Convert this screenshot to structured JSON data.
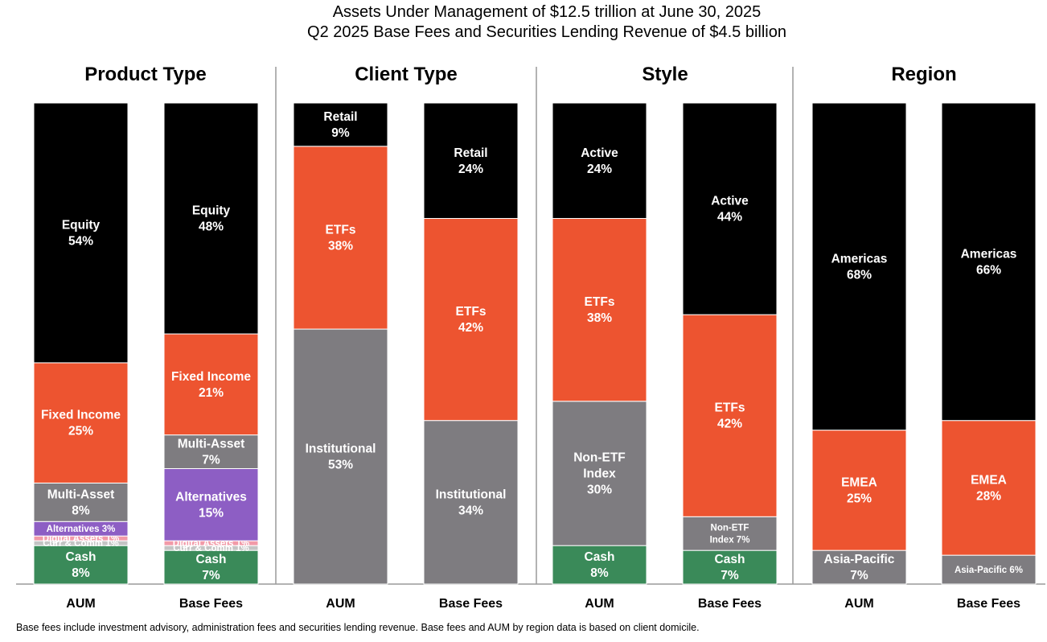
{
  "header": {
    "title_line1": "Assets Under Management of $12.5 trillion at June 30, 2025",
    "title_line2": "Q2 2025 Base Fees and Securities Lending Revenue of $4.5 billion"
  },
  "footnote": "Base fees include investment advisory, administration fees and securities lending revenue. Base fees and AUM by region data is based on client domicile.",
  "colors": {
    "black": "#000000",
    "orange": "#ed5430",
    "gray": "#7e7c80",
    "purple": "#8d5ec4",
    "pink": "#f29aa8",
    "lightgray": "#c4c4c4",
    "green": "#3a8a59"
  },
  "chart_data": [
    {
      "type": "bar",
      "stacked": "100%",
      "title": "Product Type",
      "bars": [
        {
          "label": "AUM",
          "segments": [
            {
              "name": "Cash",
              "display": "Cash",
              "value": 8,
              "label": "8%",
              "color": "green"
            },
            {
              "name": "Curr & Comm",
              "display": "Curr & Comm",
              "value": 1,
              "label": "1%",
              "color": "lightgray",
              "inline": true
            },
            {
              "name": "Digital Assets",
              "display": "Digital Assets",
              "value": 1,
              "label": "1%",
              "color": "pink",
              "inline": true
            },
            {
              "name": "Alternatives",
              "display": "Alternatives",
              "value": 3,
              "label": "3%",
              "color": "purple",
              "inline": true
            },
            {
              "name": "Multi-Asset",
              "display": "Multi-Asset",
              "value": 8,
              "label": "8%",
              "color": "gray"
            },
            {
              "name": "Fixed Income",
              "display": "Fixed Income",
              "value": 25,
              "label": "25%",
              "color": "orange"
            },
            {
              "name": "Equity",
              "display": "Equity",
              "value": 54,
              "label": "54%",
              "color": "black"
            }
          ]
        },
        {
          "label": "Base Fees",
          "segments": [
            {
              "name": "Cash",
              "display": "Cash",
              "value": 7,
              "label": "7%",
              "color": "green"
            },
            {
              "name": "Curr & Comm",
              "display": "Curr & Comm",
              "value": 1,
              "label": "1%",
              "color": "lightgray",
              "inline": true
            },
            {
              "name": "Digital Assets",
              "display": "Digital Assets",
              "value": 1,
              "label": "1%",
              "color": "pink",
              "inline": true
            },
            {
              "name": "Alternatives",
              "display": "Alternatives",
              "value": 15,
              "label": "15%",
              "color": "purple"
            },
            {
              "name": "Multi-Asset",
              "display": "Multi-Asset",
              "value": 7,
              "label": "7%",
              "color": "gray"
            },
            {
              "name": "Fixed Income",
              "display": "Fixed Income",
              "value": 21,
              "label": "21%",
              "color": "orange"
            },
            {
              "name": "Equity",
              "display": "Equity",
              "value": 48,
              "label": "48%",
              "color": "black"
            }
          ]
        }
      ]
    },
    {
      "type": "bar",
      "stacked": "100%",
      "title": "Client Type",
      "bars": [
        {
          "label": "AUM",
          "segments": [
            {
              "name": "Institutional",
              "display": "Institutional",
              "value": 53,
              "label": "53%",
              "color": "gray"
            },
            {
              "name": "ETFs",
              "display": "ETFs",
              "value": 38,
              "label": "38%",
              "color": "orange"
            },
            {
              "name": "Retail",
              "display": "Retail",
              "value": 9,
              "label": "9%",
              "color": "black"
            }
          ]
        },
        {
          "label": "Base Fees",
          "segments": [
            {
              "name": "Institutional",
              "display": "Institutional",
              "value": 34,
              "label": "34%",
              "color": "gray"
            },
            {
              "name": "ETFs",
              "display": "ETFs",
              "value": 42,
              "label": "42%",
              "color": "orange"
            },
            {
              "name": "Retail",
              "display": "Retail",
              "value": 24,
              "label": "24%",
              "color": "black"
            }
          ]
        }
      ]
    },
    {
      "type": "bar",
      "stacked": "100%",
      "title": "Style",
      "bars": [
        {
          "label": "AUM",
          "segments": [
            {
              "name": "Cash",
              "display": "Cash",
              "value": 8,
              "label": "8%",
              "color": "green"
            },
            {
              "name": "Non-ETF Index",
              "display": "Non-ETF\nIndex",
              "value": 30,
              "label": "30%",
              "color": "gray"
            },
            {
              "name": "ETFs",
              "display": "ETFs",
              "value": 38,
              "label": "38%",
              "color": "orange"
            },
            {
              "name": "Active",
              "display": "Active",
              "value": 24,
              "label": "24%",
              "color": "black"
            }
          ]
        },
        {
          "label": "Base Fees",
          "segments": [
            {
              "name": "Cash",
              "display": "Cash",
              "value": 7,
              "label": "7%",
              "color": "green"
            },
            {
              "name": "Non-ETF Index",
              "display": "Non-ETF\nIndex",
              "value": 7,
              "label": "7%",
              "color": "gray",
              "small": true
            },
            {
              "name": "ETFs",
              "display": "ETFs",
              "value": 42,
              "label": "42%",
              "color": "orange"
            },
            {
              "name": "Active",
              "display": "Active",
              "value": 44,
              "label": "44%",
              "color": "black"
            }
          ]
        }
      ]
    },
    {
      "type": "bar",
      "stacked": "100%",
      "title": "Region",
      "bars": [
        {
          "label": "AUM",
          "segments": [
            {
              "name": "Asia-Pacific",
              "display": "Asia-Pacific",
              "value": 7,
              "label": "7%",
              "color": "gray"
            },
            {
              "name": "EMEA",
              "display": "EMEA",
              "value": 25,
              "label": "25%",
              "color": "orange"
            },
            {
              "name": "Americas",
              "display": "Americas",
              "value": 68,
              "label": "68%",
              "color": "black"
            }
          ]
        },
        {
          "label": "Base Fees",
          "segments": [
            {
              "name": "Asia-Pacific",
              "display": "Asia-Pacific",
              "value": 6,
              "label": "6%",
              "color": "gray",
              "inline": true
            },
            {
              "name": "EMEA",
              "display": "EMEA",
              "value": 28,
              "label": "28%",
              "color": "orange"
            },
            {
              "name": "Americas",
              "display": "Americas",
              "value": 66,
              "label": "66%",
              "color": "black"
            }
          ]
        }
      ]
    }
  ]
}
